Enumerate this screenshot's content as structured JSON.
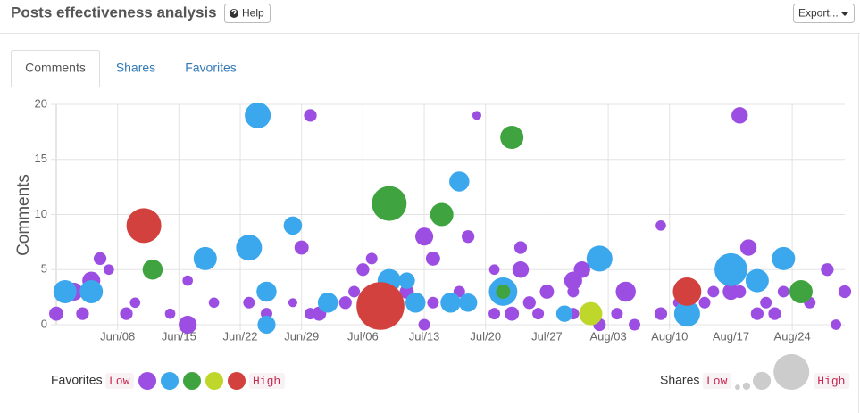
{
  "header": {
    "title": "Posts effectiveness analysis",
    "help": "Help",
    "export": "Export..."
  },
  "tabs": [
    "Comments",
    "Shares",
    "Favorites"
  ],
  "chart_data": {
    "type": "bubble",
    "ylabel": "Comments",
    "xlim": [
      "Jun/01",
      "Aug/30"
    ],
    "xticks": [
      "Jun/08",
      "Jun/15",
      "Jun/22",
      "Jun/29",
      "Jul/06",
      "Jul/13",
      "Jul/20",
      "Jul/27",
      "Aug/03",
      "Aug/10",
      "Aug/17",
      "Aug/24"
    ],
    "ylim": [
      0,
      20
    ],
    "yticks": [
      0,
      5,
      10,
      15,
      20
    ],
    "grid": true,
    "series": [
      {
        "color": "#9d4ee2",
        "x": [
          "Jun/30",
          "Jul/19",
          "Aug/18",
          "Aug/09",
          "Jul/13",
          "Jul/18",
          "Jul/24",
          "Aug/19",
          "Jun/29",
          "Jul/14",
          "Jul/24",
          "Jul/31",
          "Jun/06",
          "Jun/07",
          "Jun/05",
          "Jun/16",
          "Jul/06",
          "Jul/07",
          "Jul/21",
          "Aug/28",
          "Aug/05",
          "Jul/27",
          "Jul/30",
          "Jul/30",
          "Aug/18",
          "Aug/17",
          "Aug/23",
          "Aug/30",
          "Jun/03",
          "Jun/10",
          "Jun/19",
          "Jun/23",
          "Jun/30",
          "Jul/01",
          "Jul/05",
          "Jul/11",
          "Jul/14",
          "Jul/17",
          "Jul/21",
          "Jul/23",
          "Jul/25",
          "Jul/26",
          "Jul/30",
          "Aug/04",
          "Aug/09",
          "Aug/11",
          "Aug/14",
          "Aug/20",
          "Aug/22",
          "Aug/26",
          "Jun/16",
          "Jun/09",
          "Jun/14",
          "Jun/01",
          "Jun/04",
          "Jun/25",
          "Jun/28",
          "Aug/06",
          "Aug/29",
          "Aug/15",
          "Aug/21",
          "Jul/04",
          "Jul/13",
          "Aug/02"
        ],
        "values": [
          19,
          19,
          19,
          9,
          8,
          8,
          7,
          7,
          7,
          6,
          5,
          5,
          6,
          5,
          4,
          4,
          5,
          6,
          5,
          5,
          3,
          3,
          3,
          4,
          3,
          3,
          3,
          3,
          3,
          2,
          2,
          2,
          1,
          1,
          3,
          3,
          2,
          3,
          1,
          1,
          2,
          1,
          1,
          1,
          1,
          2,
          2,
          1,
          1,
          2,
          0,
          1,
          1,
          1,
          1,
          1,
          2,
          0,
          0,
          3,
          2,
          2,
          0,
          0
        ],
        "sizes": [
          1.2,
          0.6,
          2,
          0.8,
          2.4,
          1.2,
          1.2,
          2,
          1.5,
          1.5,
          2,
          2,
          1.2,
          0.8,
          2.4,
          0.8,
          1.2,
          1,
          0.8,
          1.2,
          3,
          1.5,
          1,
          2.4,
          1.2,
          2,
          1,
          1.2,
          2.4,
          0.8,
          0.8,
          1,
          1,
          1.5,
          1,
          1.5,
          1,
          1,
          1,
          1.5,
          1.2,
          1,
          1,
          1,
          1.2,
          0.8,
          1,
          1.2,
          1.2,
          1,
          2.4,
          1.2,
          0.8,
          1.5,
          1.2,
          1,
          0.6,
          1,
          0.8,
          1,
          1,
          1.2,
          1,
          1.2
        ]
      },
      {
        "color": "#3ba7ec",
        "x": [
          "Jun/24",
          "Jun/02",
          "Jun/05",
          "Jun/18",
          "Jun/23",
          "Jun/25",
          "Jun/28",
          "Jul/02",
          "Jul/09",
          "Jul/12",
          "Jul/17",
          "Jul/16",
          "Jul/18",
          "Jul/22",
          "Aug/02",
          "Aug/12",
          "Aug/17",
          "Aug/20",
          "Aug/23",
          "Jul/29",
          "Jul/11",
          "Jun/25"
        ],
        "values": [
          19,
          3,
          3,
          6,
          7,
          3,
          9,
          2,
          4,
          2,
          13,
          2,
          2,
          3,
          6,
          1,
          5,
          4,
          6,
          1,
          4,
          0
        ],
        "sizes": [
          5,
          4,
          4,
          4,
          5,
          3,
          2.5,
          3,
          4,
          3,
          3,
          3,
          2.5,
          6,
          5,
          5,
          8,
          4,
          4,
          2,
          2,
          2.4
        ]
      },
      {
        "color": "#3fa43f",
        "x": [
          "Jun/12",
          "Jul/09",
          "Jul/15",
          "Jul/23",
          "Jul/22",
          "Aug/25"
        ],
        "values": [
          5,
          11,
          10,
          17,
          3,
          3
        ],
        "sizes": [
          3,
          9,
          4,
          4,
          1.5,
          4
        ]
      },
      {
        "color": "#bfd62a",
        "x": [
          "Aug/01"
        ],
        "values": [
          1
        ],
        "sizes": [
          4
        ]
      },
      {
        "color": "#d3413e",
        "x": [
          "Jun/11",
          "Jul/08",
          "Aug/12"
        ],
        "values": [
          9,
          1.7,
          3
        ],
        "sizes": [
          9,
          17,
          6
        ]
      }
    ]
  },
  "favorites_legend": {
    "label": "Favorites",
    "low": "Low",
    "high": "High"
  },
  "size_legend": {
    "label": "Shares",
    "low": "Low",
    "high": "High",
    "sizes": [
      0.2,
      0.4,
      2.4,
      9.5
    ]
  }
}
